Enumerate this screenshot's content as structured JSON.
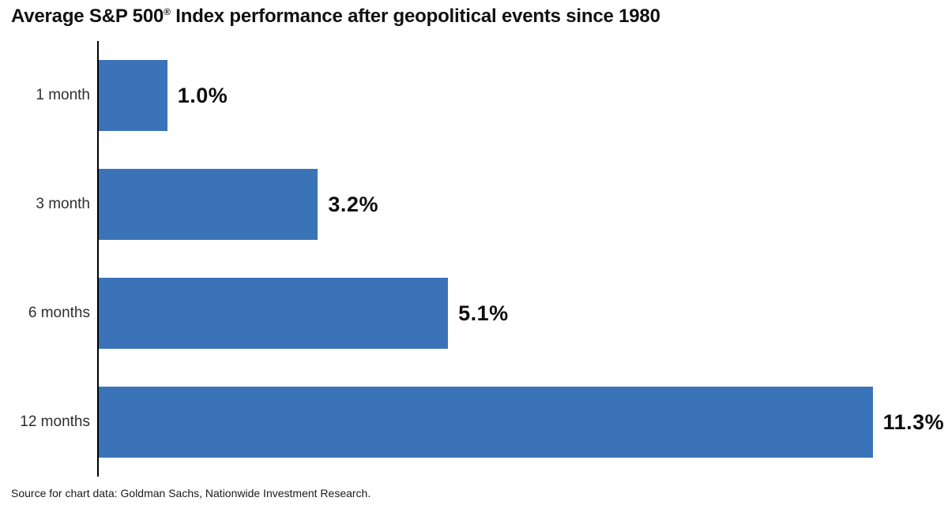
{
  "title": {
    "pre": "Average S&P 500",
    "registered_mark": "®",
    "post": " Index performance after geopolitical events since 1980"
  },
  "source": "Source for chart data: Goldman Sachs, Nationwide Investment Research.",
  "chart_data": {
    "type": "bar",
    "orientation": "horizontal",
    "title": "Average S&P 500® Index performance after geopolitical events since 1980",
    "categories": [
      "1 month",
      "3 month",
      "6 months",
      "12 months"
    ],
    "values": [
      1.0,
      3.2,
      5.1,
      11.3
    ],
    "display_values": [
      "1.0%",
      "3.2%",
      "5.1%",
      "11.3%"
    ],
    "xlabel": "",
    "ylabel": "",
    "xlim": [
      0,
      12.4
    ],
    "grid": false,
    "legend": "none",
    "bar_color": "#3b73b9",
    "axis_color": "#000000",
    "value_label_position": "right-of-bar"
  }
}
